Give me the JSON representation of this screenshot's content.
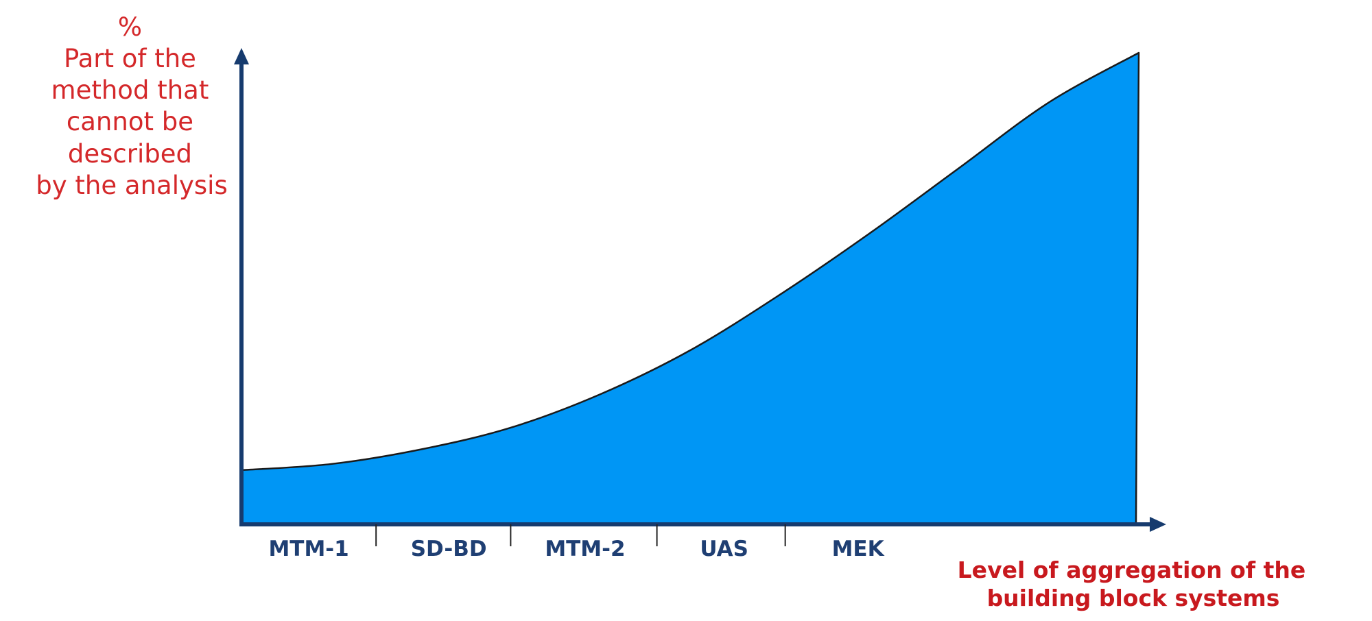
{
  "chart_data": {
    "type": "area",
    "categories": [
      "MTM-1",
      "SD-BD",
      "MTM-2",
      "UAS",
      "MEK"
    ],
    "x": [
      0,
      0.1,
      0.2,
      0.3,
      0.4,
      0.5,
      0.6,
      0.7,
      0.8,
      0.9,
      1.0
    ],
    "values": [
      0.115,
      0.128,
      0.159,
      0.205,
      0.276,
      0.369,
      0.487,
      0.617,
      0.756,
      0.895,
      1.0
    ],
    "ylabel_lines": [
      "%",
      "Part of the",
      "method that",
      "cannot be",
      "described",
      "by the analysis"
    ],
    "xlabel_lines": [
      "Level of aggregation of the",
      "building block systems"
    ],
    "ylim": [
      0,
      1
    ],
    "xlim": [
      0,
      1
    ],
    "grid": false,
    "legend": "none",
    "colors": {
      "fill": "#0096f5",
      "outline": "#1a1a1a",
      "axis": "#163b6e",
      "ylabel": "#d4282a",
      "xlabel": "#c8191e",
      "category": "#1f3f73"
    }
  }
}
